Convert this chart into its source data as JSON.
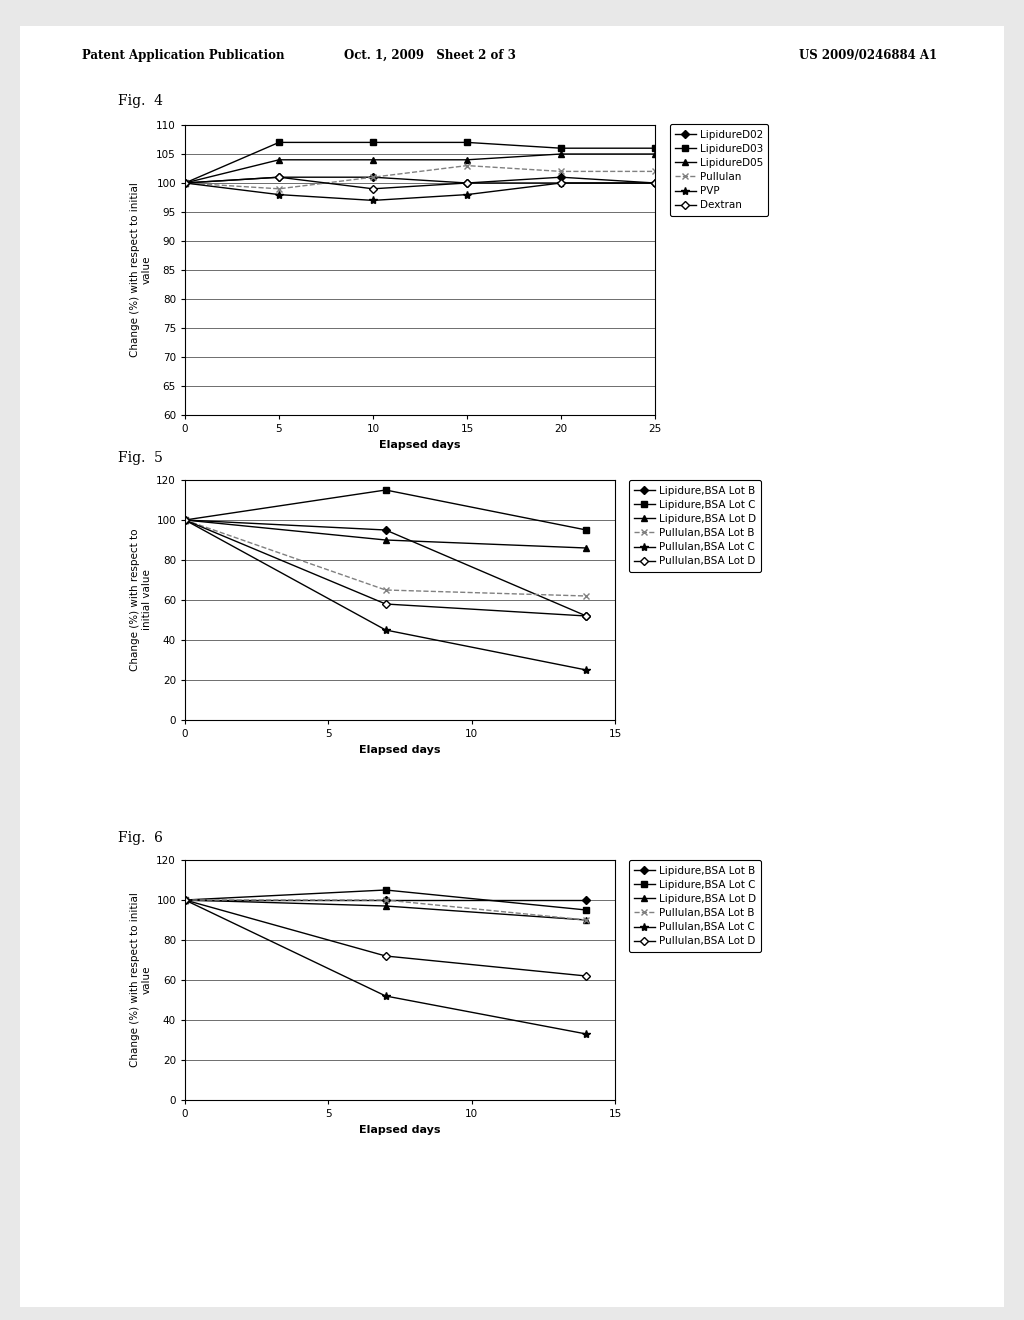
{
  "header_left": "Patent Application Publication",
  "header_mid": "Oct. 1, 2009   Sheet 2 of 3",
  "header_right": "US 2009/0246884 A1",
  "fig4": {
    "label": "Fig.  4",
    "xlabel": "Elapsed days",
    "ylabel": "Change (%) with respect to initial\nvalue",
    "xlim": [
      0,
      25
    ],
    "ylim": [
      60,
      110
    ],
    "yticks": [
      60,
      65,
      70,
      75,
      80,
      85,
      90,
      95,
      100,
      105,
      110
    ],
    "xticks": [
      0,
      5,
      10,
      15,
      20,
      25
    ],
    "series": [
      {
        "name": "LipidureD02",
        "x": [
          0,
          5,
          10,
          15,
          20,
          25
        ],
        "y": [
          100,
          101,
          101,
          100,
          101,
          100
        ],
        "marker": "D",
        "ls": "-",
        "color": "black",
        "filled": true,
        "ms": 4
      },
      {
        "name": "LipidureD03",
        "x": [
          0,
          5,
          10,
          15,
          20,
          25
        ],
        "y": [
          100,
          107,
          107,
          107,
          106,
          106
        ],
        "marker": "s",
        "ls": "-",
        "color": "black",
        "filled": true,
        "ms": 4
      },
      {
        "name": "LipidureD05",
        "x": [
          0,
          5,
          10,
          15,
          20,
          25
        ],
        "y": [
          100,
          104,
          104,
          104,
          105,
          105
        ],
        "marker": "^",
        "ls": "-",
        "color": "black",
        "filled": true,
        "ms": 4
      },
      {
        "name": "Pullulan",
        "x": [
          0,
          5,
          10,
          15,
          20,
          25
        ],
        "y": [
          100,
          99,
          101,
          103,
          102,
          102
        ],
        "marker": "x",
        "ls": "--",
        "color": "gray",
        "filled": true,
        "ms": 5
      },
      {
        "name": "PVP",
        "x": [
          0,
          5,
          10,
          15,
          20,
          25
        ],
        "y": [
          100,
          98,
          97,
          98,
          100,
          100
        ],
        "marker": "*",
        "ls": "-",
        "color": "black",
        "filled": true,
        "ms": 6
      },
      {
        "name": "Dextran",
        "x": [
          0,
          5,
          10,
          15,
          20,
          25
        ],
        "y": [
          100,
          101,
          99,
          100,
          100,
          100
        ],
        "marker": "D",
        "ls": "-",
        "color": "black",
        "filled": false,
        "ms": 4
      }
    ]
  },
  "fig5": {
    "label": "Fig.  5",
    "xlabel": "Elapsed days",
    "ylabel": "Change (%) with respect to\ninitial value",
    "xlim": [
      0,
      15
    ],
    "ylim": [
      0,
      120
    ],
    "yticks": [
      0,
      20,
      40,
      60,
      80,
      100,
      120
    ],
    "xticks": [
      0,
      5,
      10,
      15
    ],
    "series": [
      {
        "name": "Lipidure,BSA Lot B",
        "x": [
          0,
          7,
          14
        ],
        "y": [
          100,
          95,
          52
        ],
        "marker": "D",
        "ls": "-",
        "color": "black",
        "filled": true,
        "ms": 4
      },
      {
        "name": "Lipidure,BSA Lot C",
        "x": [
          0,
          7,
          14
        ],
        "y": [
          100,
          115,
          95
        ],
        "marker": "s",
        "ls": "-",
        "color": "black",
        "filled": true,
        "ms": 4
      },
      {
        "name": "Lipidure,BSA Lot D",
        "x": [
          0,
          7,
          14
        ],
        "y": [
          100,
          90,
          86
        ],
        "marker": "^",
        "ls": "-",
        "color": "black",
        "filled": true,
        "ms": 4
      },
      {
        "name": "Pullulan,BSA Lot B",
        "x": [
          0,
          7,
          14
        ],
        "y": [
          100,
          65,
          62
        ],
        "marker": "x",
        "ls": "--",
        "color": "gray",
        "filled": true,
        "ms": 5
      },
      {
        "name": "Pullulan,BSA Lot C",
        "x": [
          0,
          7,
          14
        ],
        "y": [
          100,
          45,
          25
        ],
        "marker": "*",
        "ls": "-",
        "color": "black",
        "filled": true,
        "ms": 6
      },
      {
        "name": "Pullulan,BSA Lot D",
        "x": [
          0,
          7,
          14
        ],
        "y": [
          100,
          58,
          52
        ],
        "marker": "D",
        "ls": "-",
        "color": "black",
        "filled": false,
        "ms": 4
      }
    ]
  },
  "fig6": {
    "label": "Fig.  6",
    "xlabel": "Elapsed days",
    "ylabel": "Change (%) with respect to initial\nvalue",
    "xlim": [
      0,
      15
    ],
    "ylim": [
      0,
      120
    ],
    "yticks": [
      0,
      20,
      40,
      60,
      80,
      100,
      120
    ],
    "xticks": [
      0,
      5,
      10,
      15
    ],
    "series": [
      {
        "name": "Lipidure,BSA Lot B",
        "x": [
          0,
          7,
          14
        ],
        "y": [
          100,
          100,
          100
        ],
        "marker": "D",
        "ls": "-",
        "color": "black",
        "filled": true,
        "ms": 4
      },
      {
        "name": "Lipidure,BSA Lot C",
        "x": [
          0,
          7,
          14
        ],
        "y": [
          100,
          105,
          95
        ],
        "marker": "s",
        "ls": "-",
        "color": "black",
        "filled": true,
        "ms": 4
      },
      {
        "name": "Lipidure,BSA Lot D",
        "x": [
          0,
          7,
          14
        ],
        "y": [
          100,
          97,
          90
        ],
        "marker": "^",
        "ls": "-",
        "color": "black",
        "filled": true,
        "ms": 4
      },
      {
        "name": "Pullulan,BSA Lot B",
        "x": [
          0,
          7,
          14
        ],
        "y": [
          100,
          100,
          90
        ],
        "marker": "x",
        "ls": "--",
        "color": "gray",
        "filled": true,
        "ms": 5
      },
      {
        "name": "Pullulan,BSA Lot C",
        "x": [
          0,
          7,
          14
        ],
        "y": [
          100,
          52,
          33
        ],
        "marker": "*",
        "ls": "-",
        "color": "black",
        "filled": true,
        "ms": 6
      },
      {
        "name": "Pullulan,BSA Lot D",
        "x": [
          0,
          7,
          14
        ],
        "y": [
          100,
          72,
          62
        ],
        "marker": "D",
        "ls": "-",
        "color": "black",
        "filled": false,
        "ms": 4
      }
    ]
  }
}
